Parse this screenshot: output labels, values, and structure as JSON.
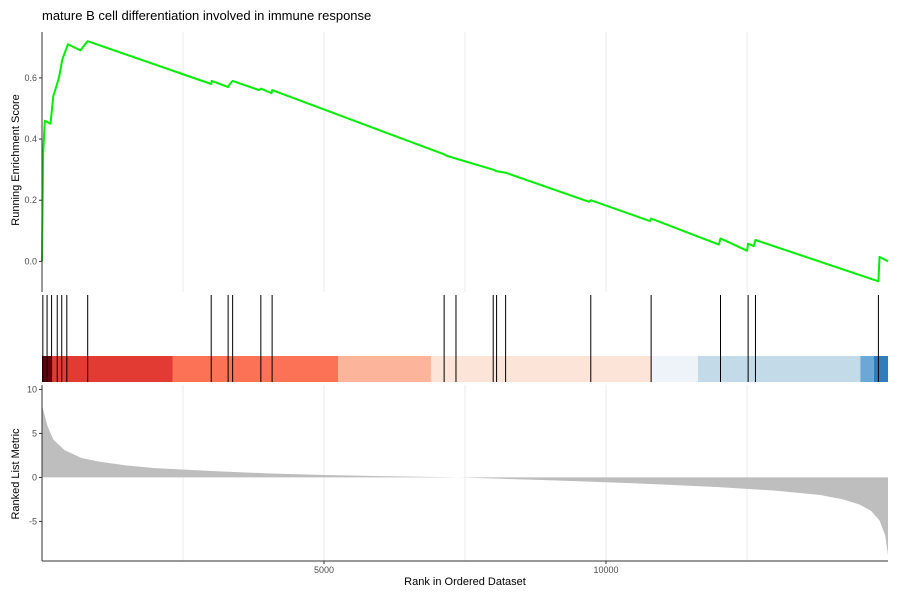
{
  "chart_data": {
    "type": "line",
    "title": "mature B cell differentiation involved in immune response",
    "xlabel": "Rank in Ordered Dataset",
    "x_range": [
      0,
      15000
    ],
    "x_ticks": [
      5000,
      10000
    ],
    "grid": "vertical only",
    "panels": [
      {
        "name": "enrichment",
        "ylabel": "Running Enrichment Score",
        "ylim": [
          -0.1,
          0.75
        ],
        "y_ticks": [
          0.0,
          0.2,
          0.4,
          0.6
        ],
        "line_color": "#00ee00",
        "series": [
          {
            "x": [
              0,
              20,
              50,
              150,
              200,
              300,
              360,
              460,
              680,
              810,
              3000,
              3010,
              3300,
              3330,
              3380,
              3850,
              3880,
              4070,
              4080,
              7130,
              7180,
              8000,
              8060,
              8220,
              9700,
              9730,
              10780,
              10800,
              12000,
              12030,
              12500,
              12520,
              12620,
              12650,
              14830,
              14850,
              15000
            ],
            "y": [
              0.0,
              0.35,
              0.46,
              0.45,
              0.54,
              0.6,
              0.66,
              0.71,
              0.69,
              0.72,
              0.58,
              0.59,
              0.57,
              0.58,
              0.59,
              0.56,
              0.565,
              0.55,
              0.56,
              0.35,
              0.345,
              0.3,
              0.295,
              0.29,
              0.195,
              0.2,
              0.132,
              0.14,
              0.055,
              0.075,
              0.035,
              0.058,
              0.05,
              0.07,
              -0.065,
              0.015,
              0.0
            ]
          }
        ]
      },
      {
        "name": "hit-positions",
        "hits": [
          15,
          90,
          170,
          270,
          350,
          440,
          810,
          3000,
          3300,
          3380,
          3880,
          4080,
          7130,
          7340,
          8000,
          8060,
          8220,
          9730,
          10800,
          12030,
          12520,
          12650,
          14830
        ]
      },
      {
        "name": "ranked-list",
        "ylabel": "Ranked List Metric",
        "ylim": [
          -9.5,
          10.5
        ],
        "y_ticks": [
          -5,
          0,
          5,
          10
        ],
        "fill_color": "#bebebe",
        "series": [
          {
            "x": [
              0,
              25,
              100,
              200,
              400,
              700,
              1000,
              1500,
              2000,
              3000,
              4000,
              5000,
              6000,
              7000,
              7400,
              8000,
              9000,
              10000,
              11000,
              12000,
              13000,
              13800,
              14200,
              14500,
              14700,
              14850,
              14950,
              15000
            ],
            "y": [
              8.2,
              7.6,
              5.8,
              4.3,
              3.1,
              2.2,
              1.8,
              1.35,
              1.05,
              0.72,
              0.46,
              0.28,
              0.14,
              0.04,
              0.0,
              -0.12,
              -0.33,
              -0.55,
              -0.8,
              -1.1,
              -1.5,
              -2.0,
              -2.5,
              -3.1,
              -3.8,
              -4.9,
              -6.6,
              -8.8
            ]
          }
        ]
      }
    ],
    "color_bar": [
      {
        "start": 0,
        "end": 160,
        "color": "#67000d"
      },
      {
        "start": 160,
        "end": 2320,
        "color": "#e23b33"
      },
      {
        "start": 2320,
        "end": 5250,
        "color": "#fb7256"
      },
      {
        "start": 5250,
        "end": 6900,
        "color": "#fcb49b"
      },
      {
        "start": 6900,
        "end": 10820,
        "color": "#fde4d9"
      },
      {
        "start": 10820,
        "end": 11630,
        "color": "#eef3fa"
      },
      {
        "start": 11630,
        "end": 14510,
        "color": "#c3dbe9"
      },
      {
        "start": 14510,
        "end": 14750,
        "color": "#6ba8d5"
      },
      {
        "start": 14750,
        "end": 15000,
        "color": "#2f7dbd"
      }
    ]
  }
}
